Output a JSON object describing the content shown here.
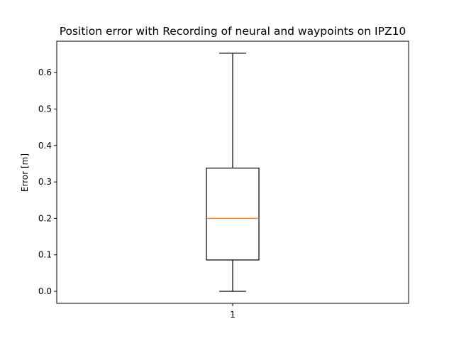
{
  "chart_data": {
    "type": "box",
    "title": "Position error with Recording of neural and waypoints on IPZ10",
    "xlabel": "",
    "ylabel": "Error [m]",
    "categories": [
      "1"
    ],
    "boxes": [
      {
        "label": "1",
        "whisker_low": 0.0,
        "q1": 0.086,
        "median": 0.2,
        "q3": 0.338,
        "whisker_high": 0.653
      }
    ],
    "ylim": [
      -0.033,
      0.686
    ],
    "yticks": [
      0.0,
      0.1,
      0.2,
      0.3,
      0.4,
      0.5,
      0.6
    ],
    "ytick_labels": [
      "0.0",
      "0.1",
      "0.2",
      "0.3",
      "0.4",
      "0.5",
      "0.6"
    ],
    "grid": false,
    "colors": {
      "box": "#000000",
      "median": "#ff7f0e",
      "axes": "#000000"
    }
  }
}
